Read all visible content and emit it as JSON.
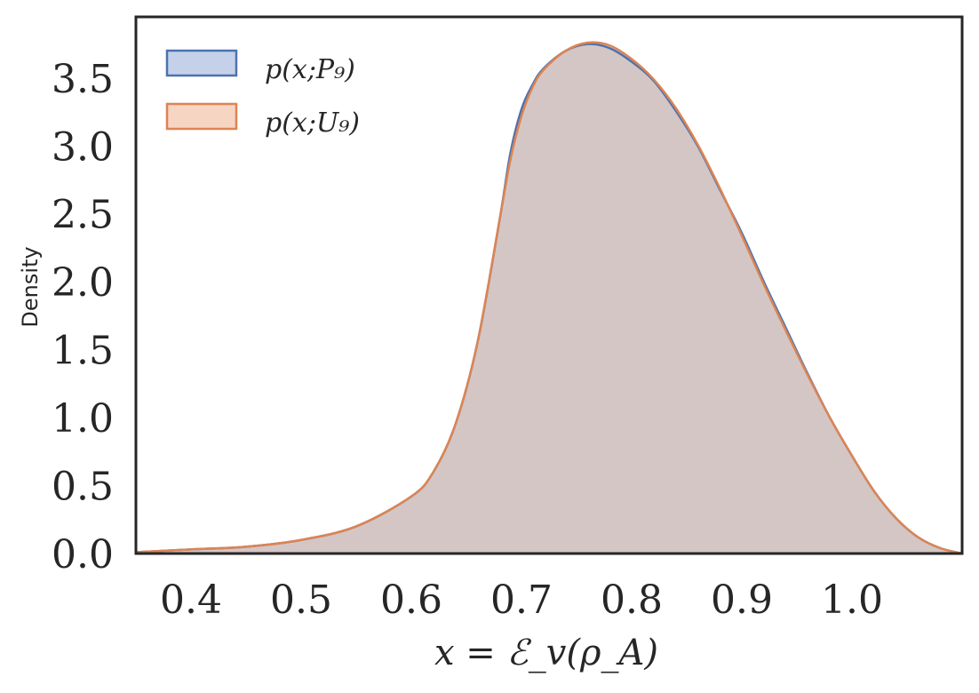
{
  "chart_data": {
    "type": "area",
    "xlabel": "x = ℰ_v(ρ_A)",
    "ylabel": "Density",
    "xlim": [
      0.35,
      1.1
    ],
    "ylim": [
      0,
      3.95
    ],
    "xticks": [
      "0.4",
      "0.5",
      "0.6",
      "0.7",
      "0.8",
      "0.9",
      "1.0"
    ],
    "xtick_values": [
      0.4,
      0.5,
      0.6,
      0.7,
      0.8,
      0.9,
      1.0
    ],
    "yticks": [
      "0.0",
      "0.5",
      "1.0",
      "1.5",
      "2.0",
      "2.5",
      "3.0",
      "3.5"
    ],
    "ytick_values": [
      0.0,
      0.5,
      1.0,
      1.5,
      2.0,
      2.5,
      3.0,
      3.5
    ],
    "grid": false,
    "legend_position": "top-left",
    "series": [
      {
        "name": "p(x;P₉)",
        "color": "#4c72b0",
        "fill": "#c5d1e8",
        "x": [
          0.35,
          0.4,
          0.45,
          0.5,
          0.55,
          0.6,
          0.62,
          0.64,
          0.66,
          0.68,
          0.69,
          0.7,
          0.71,
          0.72,
          0.74,
          0.76,
          0.78,
          0.8,
          0.82,
          0.84,
          0.86,
          0.88,
          0.9,
          0.92,
          0.94,
          0.96,
          0.98,
          1.0,
          1.02,
          1.04,
          1.06,
          1.08,
          1.1
        ],
        "y": [
          0.01,
          0.03,
          0.05,
          0.1,
          0.2,
          0.42,
          0.6,
          0.95,
          1.55,
          2.45,
          2.95,
          3.27,
          3.45,
          3.57,
          3.7,
          3.75,
          3.72,
          3.62,
          3.48,
          3.26,
          3.0,
          2.68,
          2.36,
          2.0,
          1.66,
          1.32,
          1.0,
          0.72,
          0.46,
          0.26,
          0.12,
          0.04,
          0.0
        ]
      },
      {
        "name": "p(x;U₉)",
        "color": "#dd8452",
        "fill": "#f6d5c3",
        "x": [
          0.35,
          0.4,
          0.45,
          0.5,
          0.55,
          0.6,
          0.62,
          0.64,
          0.66,
          0.68,
          0.69,
          0.7,
          0.71,
          0.72,
          0.74,
          0.76,
          0.78,
          0.8,
          0.82,
          0.84,
          0.86,
          0.88,
          0.9,
          0.92,
          0.94,
          0.96,
          0.98,
          1.0,
          1.02,
          1.04,
          1.06,
          1.08,
          1.1
        ],
        "y": [
          0.01,
          0.03,
          0.05,
          0.1,
          0.2,
          0.42,
          0.6,
          0.95,
          1.55,
          2.45,
          2.9,
          3.22,
          3.43,
          3.56,
          3.7,
          3.76,
          3.74,
          3.64,
          3.49,
          3.28,
          3.01,
          2.69,
          2.34,
          1.98,
          1.64,
          1.31,
          1.0,
          0.72,
          0.46,
          0.26,
          0.12,
          0.04,
          0.0
        ]
      }
    ]
  }
}
